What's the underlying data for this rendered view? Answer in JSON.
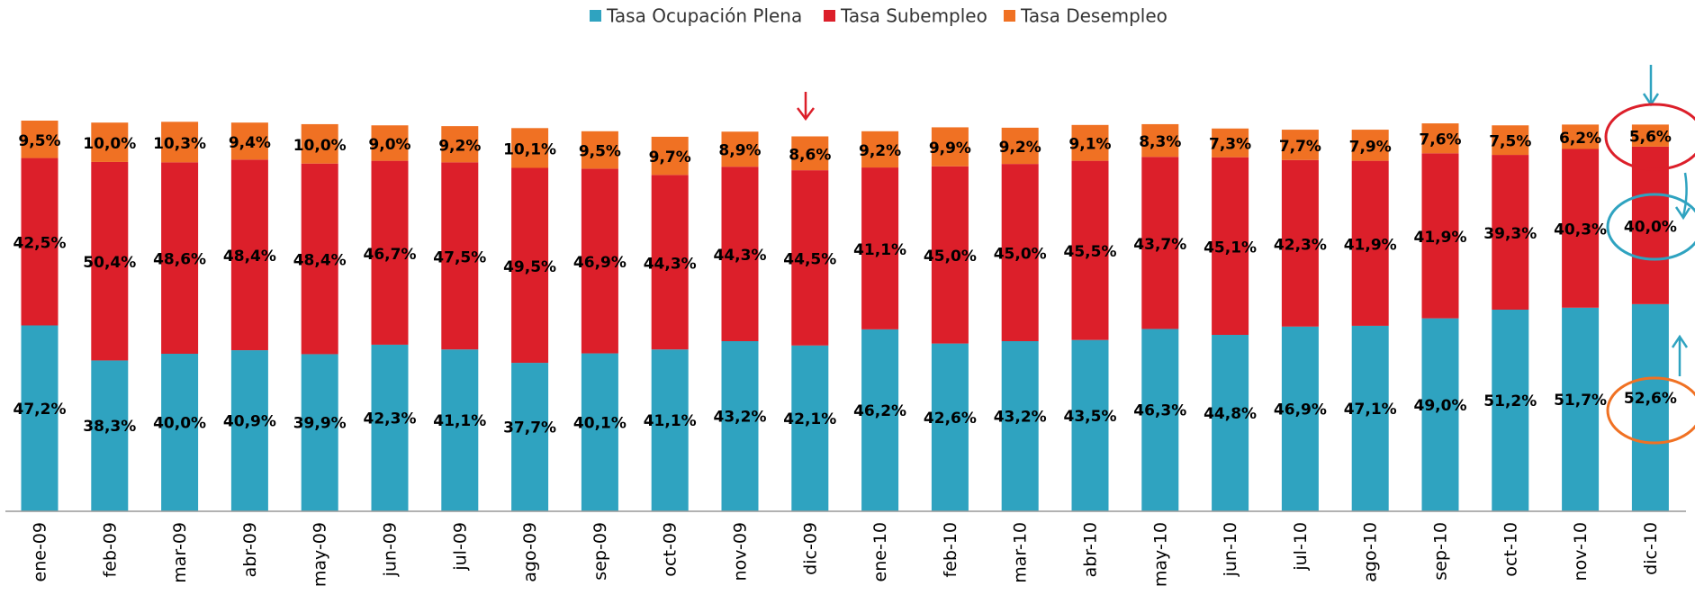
{
  "chart_data": {
    "type": "stacked_bar",
    "categories": [
      "ene-09",
      "feb-09",
      "mar-09",
      "abr-09",
      "may-09",
      "jun-09",
      "jul-09",
      "ago-09",
      "sep-09",
      "oct-09",
      "nov-09",
      "dic-09",
      "ene-10",
      "feb-10",
      "mar-10",
      "abr-10",
      "may-10",
      "jun-10",
      "jul-10",
      "ago-10",
      "sep-10",
      "oct-10",
      "nov-10",
      "dic-10"
    ],
    "series": [
      {
        "name": "Tasa Ocupación Plena",
        "color": "#2fa3c0",
        "values": [
          47.2,
          38.3,
          40.0,
          40.9,
          39.9,
          42.3,
          41.1,
          37.7,
          40.1,
          41.1,
          43.2,
          42.1,
          46.2,
          42.6,
          43.2,
          43.5,
          46.3,
          44.8,
          46.9,
          47.1,
          49.0,
          51.2,
          51.7,
          52.6
        ],
        "value_labels": [
          "47,2%",
          "38,3%",
          "40,0%",
          "40,9%",
          "39,9%",
          "42,3%",
          "41,1%",
          "37,7%",
          "40,1%",
          "41,1%",
          "43,2%",
          "42,1%",
          "46,2%",
          "42,6%",
          "43,2%",
          "43,5%",
          "46,3%",
          "44,8%",
          "46,9%",
          "47,1%",
          "49,0%",
          "51,2%",
          "51,7%",
          "52,6%"
        ]
      },
      {
        "name": "Tasa Subempleo",
        "color": "#dc1f2a",
        "values": [
          42.5,
          50.4,
          48.6,
          48.4,
          48.4,
          46.7,
          47.5,
          49.5,
          46.9,
          44.3,
          44.3,
          44.5,
          41.1,
          45.0,
          45.0,
          45.5,
          43.7,
          45.1,
          42.3,
          41.9,
          41.9,
          39.3,
          40.3,
          40.0
        ],
        "value_labels": [
          "42,5%",
          "50,4%",
          "48,6%",
          "48,4%",
          "48,4%",
          "46,7%",
          "47,5%",
          "49,5%",
          "46,9%",
          "44,3%",
          "44,3%",
          "44,5%",
          "41,1%",
          "45,0%",
          "45,0%",
          "45,5%",
          "43,7%",
          "45,1%",
          "42,3%",
          "41,9%",
          "41,9%",
          "39,3%",
          "40,3%",
          "40,0%"
        ]
      },
      {
        "name": "Tasa Desempleo",
        "color": "#f07123",
        "values": [
          9.5,
          10.0,
          10.3,
          9.4,
          10.0,
          9.0,
          9.2,
          10.1,
          9.5,
          9.7,
          8.9,
          8.6,
          9.2,
          9.9,
          9.2,
          9.1,
          8.3,
          7.3,
          7.7,
          7.9,
          7.6,
          7.5,
          6.2,
          5.6
        ],
        "value_labels": [
          "9,5%",
          "10,0%",
          "10,3%",
          "9,4%",
          "10,0%",
          "9,0%",
          "9,2%",
          "10,1%",
          "9,5%",
          "9,7%",
          "8,9%",
          "8,6%",
          "9,2%",
          "9,9%",
          "9,2%",
          "9,1%",
          "8,3%",
          "7,3%",
          "7,7%",
          "7,9%",
          "7,6%",
          "7,5%",
          "6,2%",
          "5,6%"
        ]
      }
    ]
  }
}
